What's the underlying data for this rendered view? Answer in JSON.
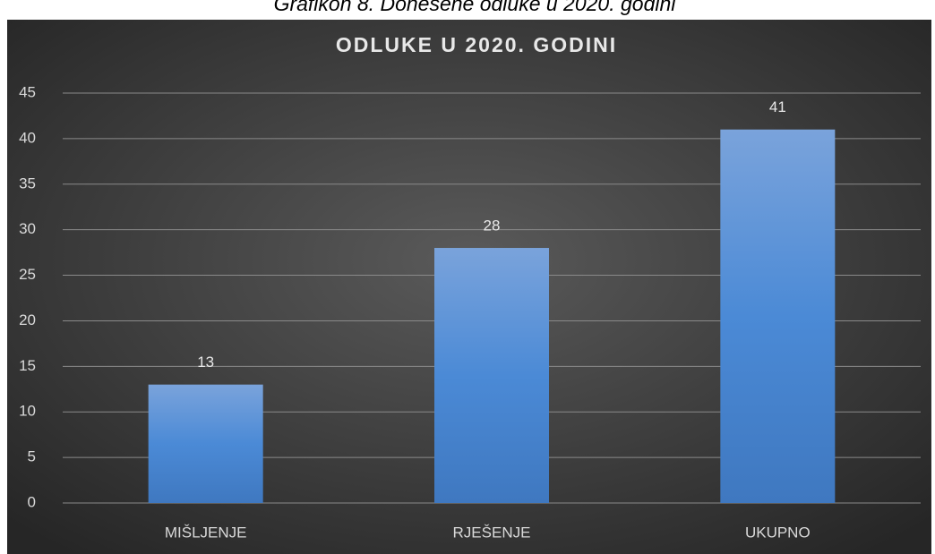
{
  "caption": "Grafikon 8. Donesene odluke u 2020. godini",
  "chart_data": {
    "type": "bar",
    "title": "ODLUKE U 2020. GODINI",
    "categories": [
      "MIŠLJENJE",
      "RJEŠENJE",
      "UKUPNO"
    ],
    "values": [
      13,
      28,
      41
    ],
    "color": "#4a86cf",
    "ylim": [
      0,
      45
    ],
    "yticks": [
      0,
      5,
      10,
      15,
      20,
      25,
      30,
      35,
      40,
      45
    ],
    "grid": true,
    "data_labels": true
  }
}
